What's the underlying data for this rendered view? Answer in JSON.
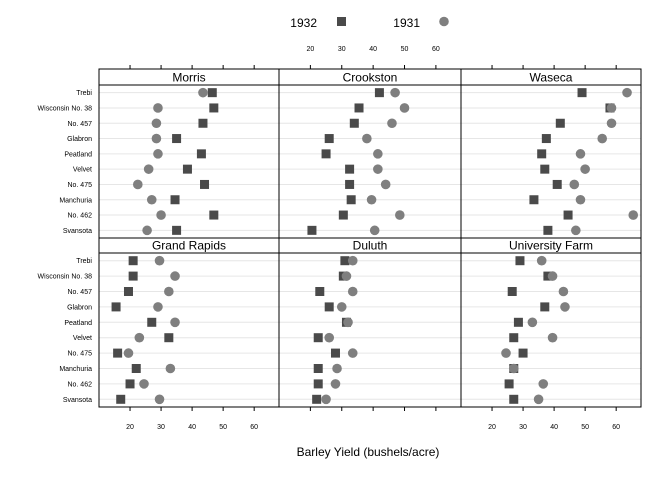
{
  "chart_data": {
    "type": "dot",
    "xlabel": "Barley Yield (bushels/acre)",
    "xlim": [
      10,
      68
    ],
    "xticks": [
      20,
      30,
      40,
      50,
      60
    ],
    "varieties": [
      "Trebi",
      "Wisconsin No. 38",
      "No. 457",
      "Glabron",
      "Peatland",
      "Velvet",
      "No. 475",
      "Manchuria",
      "No. 462",
      "Svansota"
    ],
    "series": [
      {
        "name": "1932",
        "marker": "square",
        "color": "#4a4a4a"
      },
      {
        "name": "1931",
        "marker": "circle",
        "color": "#7f7f7f"
      }
    ],
    "panels": [
      {
        "site": "Morris",
        "values_1932": [
          46.5,
          47.0,
          43.5,
          35.0,
          43.0,
          38.5,
          44.0,
          34.5,
          47.0,
          35.0
        ],
        "values_1931": [
          43.5,
          29.0,
          28.5,
          28.5,
          29.0,
          26.0,
          22.5,
          27.0,
          30.0,
          25.5
        ]
      },
      {
        "site": "Crookston",
        "values_1932": [
          42.0,
          35.5,
          34.0,
          26.0,
          25.0,
          32.5,
          32.5,
          33.0,
          30.5,
          20.5
        ],
        "values_1931": [
          47.0,
          50.0,
          46.0,
          38.0,
          41.5,
          41.5,
          44.0,
          39.5,
          48.5,
          40.5
        ]
      },
      {
        "site": "Waseca",
        "values_1932": [
          49.0,
          58.0,
          42.0,
          37.5,
          36.0,
          37.0,
          41.0,
          33.5,
          44.5,
          38.0
        ],
        "values_1931": [
          63.5,
          58.5,
          58.5,
          55.5,
          48.5,
          50.0,
          46.5,
          48.5,
          65.5,
          47.0
        ]
      },
      {
        "site": "Grand Rapids",
        "values_1932": [
          21.0,
          21.0,
          19.5,
          15.5,
          27.0,
          32.5,
          16.0,
          22.0,
          20.0,
          17.0
        ],
        "values_1931": [
          29.5,
          34.5,
          32.5,
          29.0,
          34.5,
          23.0,
          19.5,
          33.0,
          24.5,
          29.5
        ]
      },
      {
        "site": "Duluth",
        "values_1932": [
          31.0,
          30.5,
          23.0,
          26.0,
          31.5,
          22.5,
          28.0,
          22.5,
          22.5,
          22.0
        ],
        "values_1931": [
          33.5,
          31.5,
          33.5,
          30.0,
          32.0,
          26.0,
          33.5,
          28.5,
          28.0,
          25.0
        ]
      },
      {
        "site": "University Farm",
        "values_1932": [
          29.0,
          38.0,
          26.5,
          37.0,
          28.5,
          27.0,
          30.0,
          27.0,
          25.5,
          27.0
        ],
        "values_1931": [
          36.0,
          39.5,
          43.0,
          43.5,
          33.0,
          39.5,
          24.5,
          27.0,
          36.5,
          35.0
        ]
      }
    ]
  }
}
